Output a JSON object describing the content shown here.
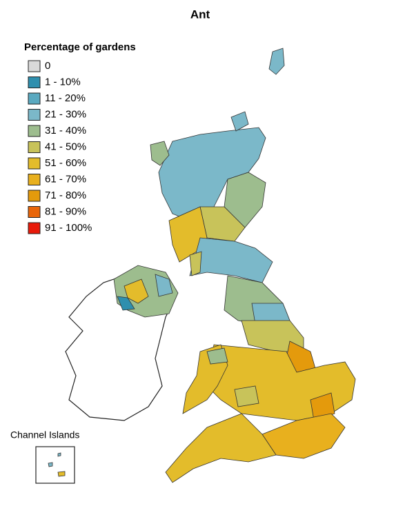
{
  "title": "Ant",
  "legend": {
    "title": "Percentage of gardens",
    "items": [
      {
        "label": "0",
        "color": "#d9d9d9"
      },
      {
        "label": "1 - 10%",
        "color": "#2f8fae"
      },
      {
        "label": "11 - 20%",
        "color": "#5aa9c0"
      },
      {
        "label": "21 - 30%",
        "color": "#7bb8c9"
      },
      {
        "label": "31 - 40%",
        "color": "#9dbd8e"
      },
      {
        "label": "41 - 50%",
        "color": "#c8c35a"
      },
      {
        "label": "51 - 60%",
        "color": "#e3bc2b"
      },
      {
        "label": "61 - 70%",
        "color": "#e8b01e"
      },
      {
        "label": "71 - 80%",
        "color": "#e49a0c"
      },
      {
        "label": "81 - 90%",
        "color": "#e8650a"
      },
      {
        "label": "91 - 100%",
        "color": "#e81a0a"
      }
    ]
  },
  "inset": {
    "label": "Channel Islands"
  }
}
